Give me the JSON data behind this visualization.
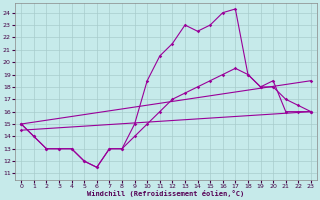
{
  "xlabel": "Windchill (Refroidissement éolien,°C)",
  "xlim": [
    -0.5,
    23.5
  ],
  "ylim": [
    10.5,
    24.8
  ],
  "yticks": [
    11,
    12,
    13,
    14,
    15,
    16,
    17,
    18,
    19,
    20,
    21,
    22,
    23,
    24
  ],
  "xticks": [
    0,
    1,
    2,
    3,
    4,
    5,
    6,
    7,
    8,
    9,
    10,
    11,
    12,
    13,
    14,
    15,
    16,
    17,
    18,
    19,
    20,
    21,
    22,
    23
  ],
  "bg_color": "#c6eaea",
  "grid_color": "#a8cccc",
  "line_color": "#990099",
  "curve1_x": [
    0,
    1,
    2,
    3,
    4,
    5,
    6,
    7,
    8,
    9,
    10,
    11,
    12,
    13,
    14,
    15,
    16,
    17,
    18,
    19,
    20,
    21,
    22,
    23
  ],
  "curve1_y": [
    15,
    14,
    13,
    13,
    13,
    12,
    11.5,
    13,
    13,
    15,
    18.5,
    20.5,
    21.5,
    23,
    22.5,
    23,
    24,
    24.3,
    19,
    18,
    18.5,
    16,
    16,
    16
  ],
  "curve2_x": [
    0,
    1,
    2,
    3,
    4,
    5,
    6,
    7,
    8,
    9,
    10,
    11,
    12,
    13,
    14,
    15,
    16,
    17,
    18,
    19,
    20,
    21,
    22,
    23
  ],
  "curve2_y": [
    15,
    14,
    13,
    13,
    13,
    12,
    11.5,
    13,
    13,
    14,
    15,
    16,
    17,
    17.5,
    18,
    18.5,
    19,
    19.5,
    19,
    18,
    18,
    17,
    16.5,
    16
  ],
  "line3_x": [
    0,
    23
  ],
  "line3_y": [
    15.0,
    18.5
  ],
  "line4_x": [
    0,
    23
  ],
  "line4_y": [
    14.5,
    16.0
  ]
}
